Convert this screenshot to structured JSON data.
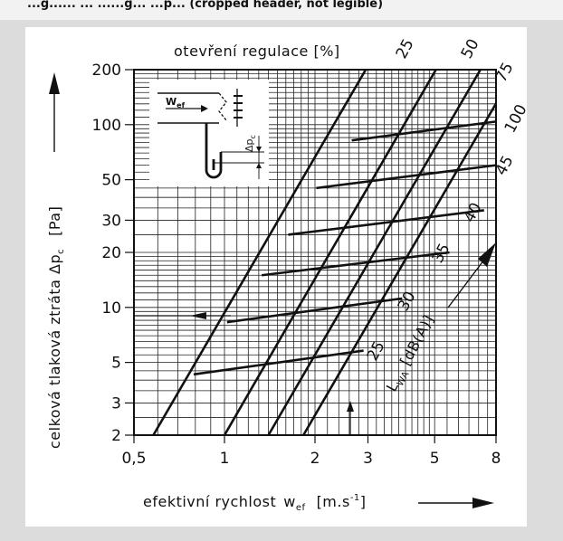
{
  "header": {
    "text": "...g...... ... ......g... ...p... (cropped header, not legible)"
  },
  "chart_data": {
    "type": "line",
    "xscale": "log",
    "yscale": "log",
    "xlim": [
      0.5,
      8
    ],
    "ylim": [
      2,
      200
    ],
    "x_ticks": [
      0.5,
      1,
      2,
      3,
      5,
      8
    ],
    "x_tick_labels": [
      "0,5",
      "1",
      "2",
      "3",
      "5",
      "8"
    ],
    "y_ticks": [
      2,
      3,
      5,
      10,
      20,
      30,
      50,
      100,
      200
    ],
    "y_tick_labels": [
      "2",
      "3",
      "5",
      "10",
      "20",
      "30",
      "50",
      "100",
      "200"
    ],
    "xlabel": "efektivní rychlost",
    "xlabel_symbol": "w",
    "xlabel_subscript": "ef",
    "xlabel_unit": "[m.s",
    "xlabel_unit_exp": "-1",
    "xlabel_unit_end": "]",
    "ylabel": "celková tlaková ztráta  Δp",
    "ylabel_subscript": "c",
    "ylabel_unit": "[Pa]",
    "top_label": "otevření regulace [%]",
    "noise_axis_label": "L",
    "noise_axis_subscript": "WA",
    "noise_axis_unit": "[dB(A)]",
    "opening_series": [
      {
        "name": "25",
        "x": [
          0.58,
          2.95
        ],
        "y": [
          2,
          200
        ]
      },
      {
        "name": "50",
        "x": [
          1.0,
          5.05
        ],
        "y": [
          2,
          200
        ]
      },
      {
        "name": "75",
        "x": [
          1.4,
          7.1
        ],
        "y": [
          2,
          200
        ]
      },
      {
        "name": "100",
        "x": [
          1.83,
          9.3
        ],
        "y": [
          2,
          200
        ]
      }
    ],
    "noise_series": [
      {
        "name": "25",
        "x": [
          0.79,
          2.9
        ],
        "y": [
          4.3,
          5.8
        ]
      },
      {
        "name": "30",
        "x": [
          1.02,
          3.9
        ],
        "y": [
          8.3,
          11.2
        ]
      },
      {
        "name": "35",
        "x": [
          1.33,
          5.6
        ],
        "y": [
          15,
          20
        ]
      },
      {
        "name": "40",
        "x": [
          1.63,
          7.3
        ],
        "y": [
          25,
          34
        ]
      },
      {
        "name": "45",
        "x": [
          2.02,
          8.0
        ],
        "y": [
          45,
          60
        ]
      },
      {
        "name": "",
        "x": [
          2.65,
          8.0
        ],
        "y": [
          82,
          104
        ]
      }
    ],
    "noise_labels": [
      "25",
      "30",
      "35",
      "40",
      "45"
    ]
  },
  "inset": {
    "velocity_label": "W",
    "velocity_subscript": "ef",
    "pressure_label": "Δp",
    "pressure_subscript": "c"
  }
}
